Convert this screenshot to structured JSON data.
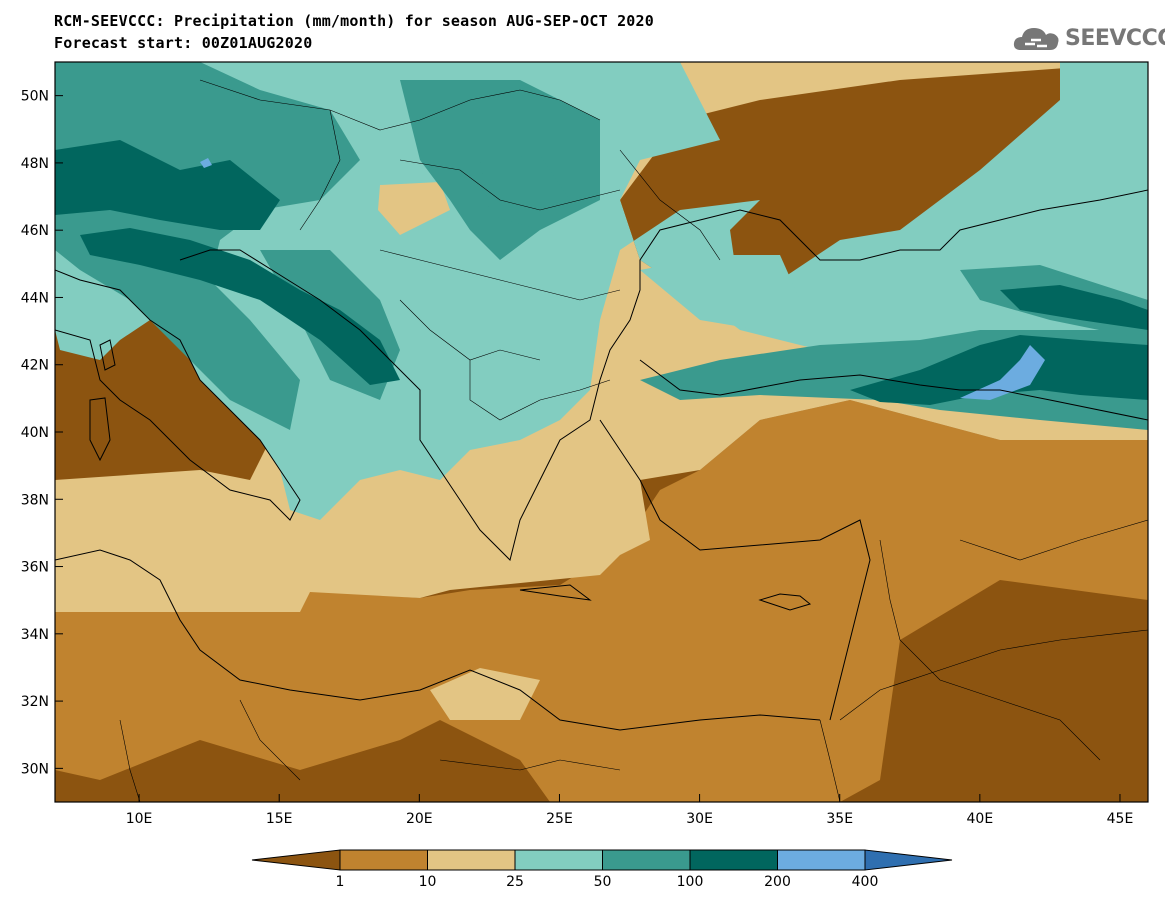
{
  "title_line1": "RCM-SEEVCCC: Precipitation (mm/month) for season AUG-SEP-OCT 2020",
  "title_line2": "Forecast start: 00Z01AUG2020",
  "logo": {
    "text": "SEEVCCC",
    "icon": "cloud-icon"
  },
  "map": {
    "lon_range": [
      7,
      46
    ],
    "lat_range": [
      29,
      51
    ],
    "lat_ticks": [
      "50N",
      "48N",
      "46N",
      "44N",
      "42N",
      "40N",
      "38N",
      "36N",
      "34N",
      "32N",
      "30N"
    ],
    "lon_ticks": [
      "10E",
      "15E",
      "20E",
      "25E",
      "30E",
      "35E",
      "40E",
      "45E"
    ]
  },
  "colorbar": {
    "labels": [
      "1",
      "10",
      "25",
      "50",
      "100",
      "200",
      "400"
    ],
    "colors": [
      "#8c5410",
      "#c0832f",
      "#e3c584",
      "#82cdc0",
      "#3a9a8e",
      "#01665e",
      "#6cace0",
      "#2f6fb0"
    ]
  }
}
